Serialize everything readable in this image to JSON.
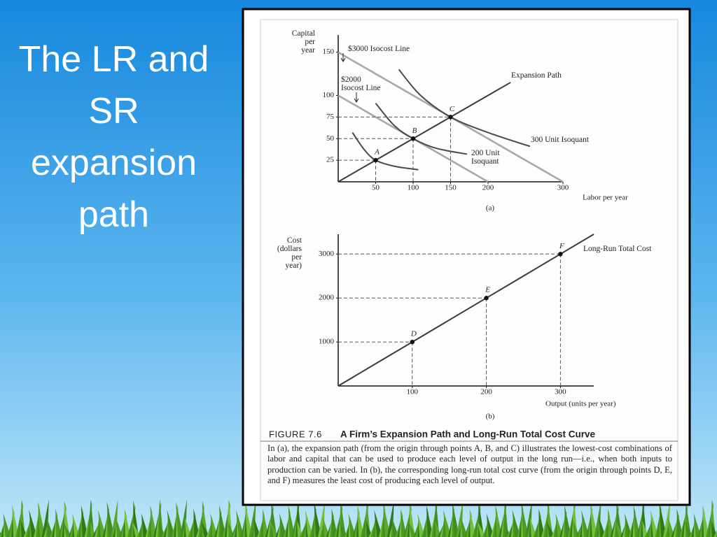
{
  "slide_title": "The LR and SR expansion path",
  "figure_label": "FIGURE 7.6",
  "figure_title": "A Firm’s Expansion Path and Long-Run Total Cost Curve",
  "caption": "In (a), the expansion path (from the origin through points A, B, and C) illustrates the lowest-cost combinations of labor and capital that can be used to produce each level of output in the long run—i.e., when both inputs to production can be varied. In (b), the corresponding long-run total cost curve (from the origin through points D, E, and F) measures the least cost of producing each level of output.",
  "chart_data": [
    {
      "type": "line",
      "panel_label": "(a)",
      "x_label": "Labor per year",
      "y_label": "Capital\nper\nyear",
      "xlim": [
        0,
        300
      ],
      "ylim": [
        0,
        170
      ],
      "xticks": [
        50,
        100,
        150,
        200,
        300
      ],
      "yticks": [
        25,
        50,
        75,
        100,
        150
      ],
      "series": [
        {
          "name": "Expansion Path",
          "color": "#3a3a3a",
          "x": [
            0,
            50,
            100,
            150,
            230
          ],
          "values": [
            0,
            25,
            50,
            75,
            115
          ]
        },
        {
          "name": "$3000 Isocost Line",
          "color": "#a8a8a8",
          "x": [
            0,
            300
          ],
          "values": [
            150,
            0
          ]
        },
        {
          "name": "$2000\nIsocost Line",
          "color": "#a8a8a8",
          "x": [
            0,
            200
          ],
          "values": [
            100,
            0
          ]
        },
        {
          "name": "200 Unit\nIsoquant",
          "color": "#4a4a4a",
          "x": [
            50,
            75,
            100,
            130,
            172
          ],
          "values": [
            91,
            65,
            50,
            39,
            32
          ]
        },
        {
          "name": "300 Unit Isoquant",
          "color": "#4a4a4a",
          "x": [
            81,
            110,
            150,
            200,
            256
          ],
          "values": [
            130,
            100,
            75,
            57,
            41
          ]
        },
        {
          "color": "#4a4a4a",
          "x": [
            19,
            35,
            50,
            75,
            107
          ],
          "values": [
            57,
            37,
            25,
            18,
            14
          ]
        }
      ],
      "points": [
        {
          "label": "A",
          "x": 50,
          "y": 25
        },
        {
          "label": "B",
          "x": 100,
          "y": 50
        },
        {
          "label": "C",
          "x": 150,
          "y": 75
        }
      ]
    },
    {
      "type": "line",
      "panel_label": "(b)",
      "x_label": "Output (units per year)",
      "y_label": "Cost\n(dollars\nper\nyear)",
      "xlim": [
        0,
        345
      ],
      "ylim": [
        0,
        3450
      ],
      "xticks": [
        100,
        200,
        300
      ],
      "yticks": [
        1000,
        2000,
        3000
      ],
      "series": [
        {
          "name": "Long-Run Total Cost",
          "color": "#3a3a3a",
          "x": [
            0,
            100,
            200,
            300,
            345
          ],
          "values": [
            0,
            1000,
            2000,
            3000,
            3450
          ]
        }
      ],
      "points": [
        {
          "label": "D",
          "x": 100,
          "y": 1000
        },
        {
          "label": "E",
          "x": 200,
          "y": 2000
        },
        {
          "label": "F",
          "x": 300,
          "y": 3000
        }
      ]
    }
  ]
}
